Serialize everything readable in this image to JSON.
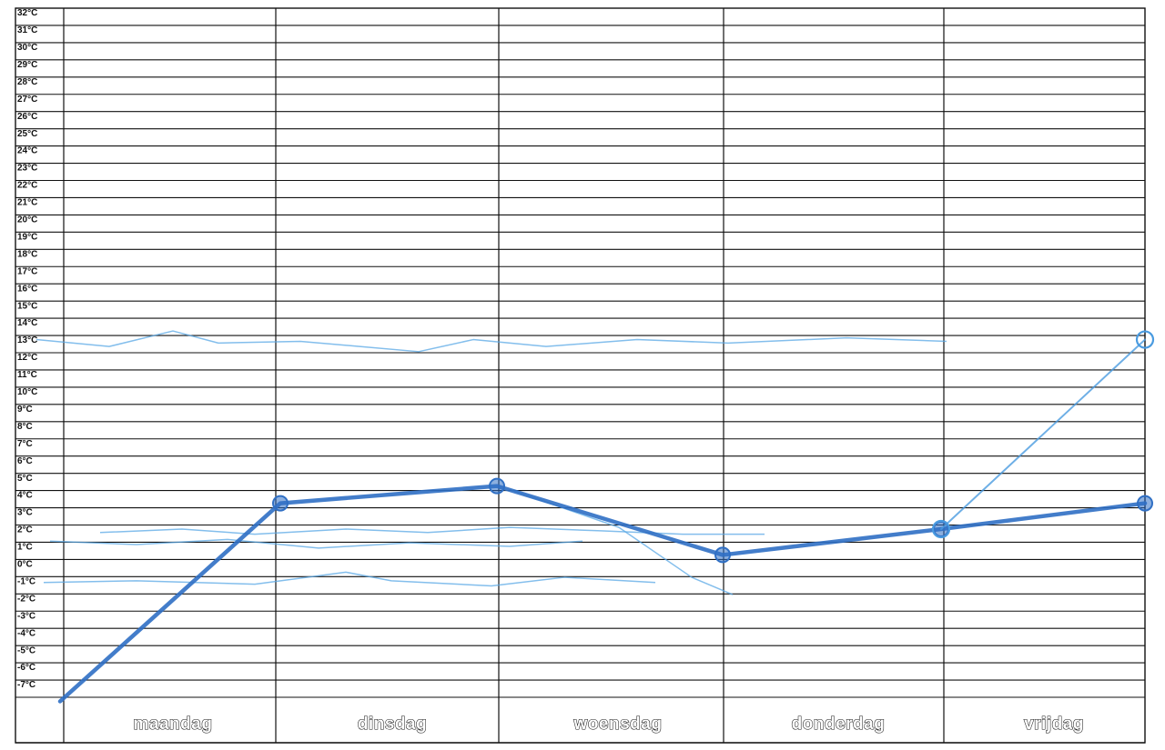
{
  "chart_data": {
    "type": "line",
    "title": "",
    "xlabel": "",
    "ylabel": "",
    "categories": [
      "maandag",
      "dinsdag",
      "woensdag",
      "donderdag",
      "vrijdag"
    ],
    "y_ticks": [
      "32°C",
      "31°C",
      "30°C",
      "29°C",
      "28°C",
      "27°C",
      "26°C",
      "25°C",
      "24°C",
      "23°C",
      "22°C",
      "21°C",
      "20°C",
      "19°C",
      "18°C",
      "17°C",
      "16°C",
      "15°C",
      "14°C",
      "13°C",
      "12°C",
      "11°C",
      "10°C",
      "9°C",
      "8°C",
      "7°C",
      "6°C",
      "5°C",
      "4°C",
      "3°C",
      "2°C",
      "1°C",
      "0°C",
      "-1°C",
      "-2°C",
      "-3°C",
      "-4°C",
      "-5°C",
      "-6°C",
      "-7°C"
    ],
    "ylim": [
      -7,
      32
    ],
    "grid": true,
    "series": [
      {
        "color": "#2f6fc4",
        "style": "hand-drawn marker",
        "x": [
          "maandag (start)",
          "maandag / dinsdag",
          "woensdag",
          "donderdag",
          "donderdag / vrijdag",
          "vrijdag (end)"
        ],
        "values": [
          -8,
          3.5,
          4.5,
          0.5,
          2,
          3.5
        ]
      },
      {
        "color": "#4a9be0",
        "style": "hand-drawn pencil",
        "x": [
          "donderdag / vrijdag",
          "vrijdag (end)"
        ],
        "values": [
          2,
          13
        ]
      }
    ]
  }
}
